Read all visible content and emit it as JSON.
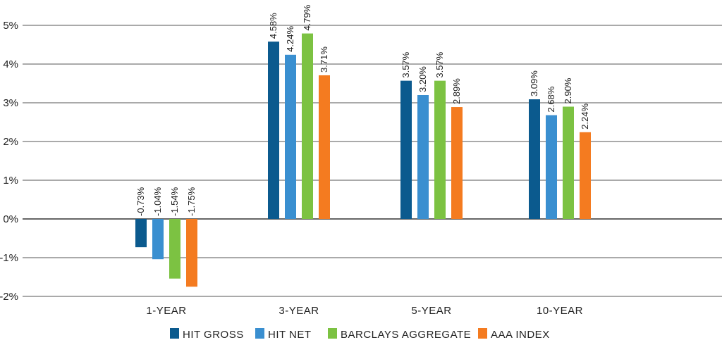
{
  "chart_data": {
    "type": "bar",
    "categories": [
      "1-YEAR",
      "3-YEAR",
      "5-YEAR",
      "10-YEAR"
    ],
    "series": [
      {
        "name": "HIT GROSS",
        "color": "#0b5a8e",
        "values": [
          -0.73,
          4.58,
          3.57,
          3.09
        ],
        "labels": [
          "-0.73%",
          "4.58%",
          "3.57%",
          "3.09%"
        ]
      },
      {
        "name": "HIT NET",
        "color": "#3a8fd0",
        "values": [
          -1.04,
          4.24,
          3.2,
          2.68
        ],
        "labels": [
          "-1.04%",
          "4.24%",
          "3.20%",
          "2.68%"
        ]
      },
      {
        "name": "BARCLAYS AGGREGATE",
        "color": "#7cc242",
        "values": [
          -1.54,
          4.79,
          3.57,
          2.9
        ],
        "labels": [
          "-1.54%",
          "4.79%",
          "3.57%",
          "2.90%"
        ]
      },
      {
        "name": "AAA INDEX",
        "color": "#f47b20",
        "values": [
          -1.75,
          3.71,
          2.89,
          2.24
        ],
        "labels": [
          "-1.75%",
          "3.71%",
          "2.89%",
          "2.24%"
        ]
      }
    ],
    "ylim": [
      -2,
      5
    ],
    "yticks": [
      5,
      4,
      3,
      2,
      1,
      0,
      -1,
      -2
    ],
    "ytick_labels": [
      "5%",
      "4%",
      "3%",
      "2%",
      "1%",
      "0%",
      "-1%",
      "-2%"
    ],
    "grid": true,
    "legend": "bottom-center"
  }
}
